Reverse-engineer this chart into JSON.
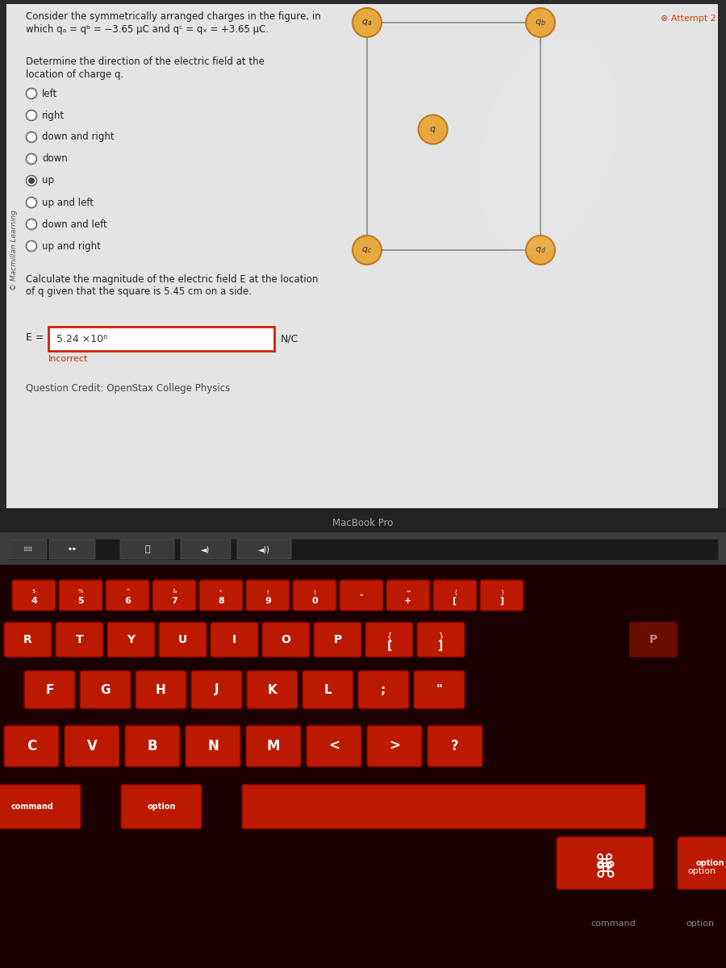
{
  "title_line1": "Consider the symmetrically arranged charges in the figure, in",
  "title_line2": "which qₐ = qᵇ = −3.65 μC and qᶜ = qₓ = +3.65 μC.",
  "macmillan_label": "© Macmillan Learning",
  "attempt_label": "⊗ Attempt 2",
  "radio_options": [
    "left",
    "right",
    "down and right",
    "down",
    "up",
    "up and left",
    "down and left",
    "up and right"
  ],
  "selected_option": "up",
  "answer_value": "5.24 ×10⁶",
  "incorrect_label": "Incorrect",
  "nc_label": "N/C",
  "e_label": "E =",
  "credit_label": "Question Credit: OpenStax College Physics",
  "macbook_label": "MacBook Pro",
  "laptop_body_color": "#3c3c3c",
  "keyboard_color": "#bb1a00",
  "keyboard_dark": "#1a0000",
  "keyboard_shadow": "#660000",
  "charge_color": "#e8a840",
  "charge_border": "#c07820",
  "square_line_color": "#888888",
  "answer_box_border": "#cc2200",
  "incorrect_color": "#cc2200",
  "screen_bg": "#d8d8d8",
  "screen_content_bg": "#e4e4e4"
}
